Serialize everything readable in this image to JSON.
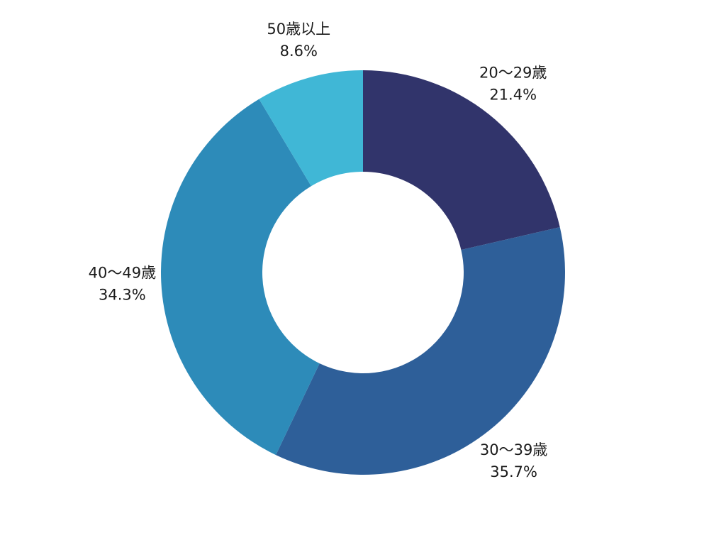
{
  "chart_data": {
    "type": "pie",
    "donut": true,
    "title": "",
    "categories": [
      "20〜29歳",
      "30〜39歳",
      "40〜49歳",
      "50歳以上"
    ],
    "values": [
      21.4,
      35.7,
      34.3,
      8.6
    ],
    "value_labels": [
      "21.4%",
      "35.7%",
      "34.3%",
      "8.6%"
    ],
    "colors": [
      "#31346b",
      "#2e5f99",
      "#2d8bb9",
      "#40b7d6"
    ],
    "start": "12 o'clock",
    "direction": "clockwise",
    "legend": "none"
  }
}
